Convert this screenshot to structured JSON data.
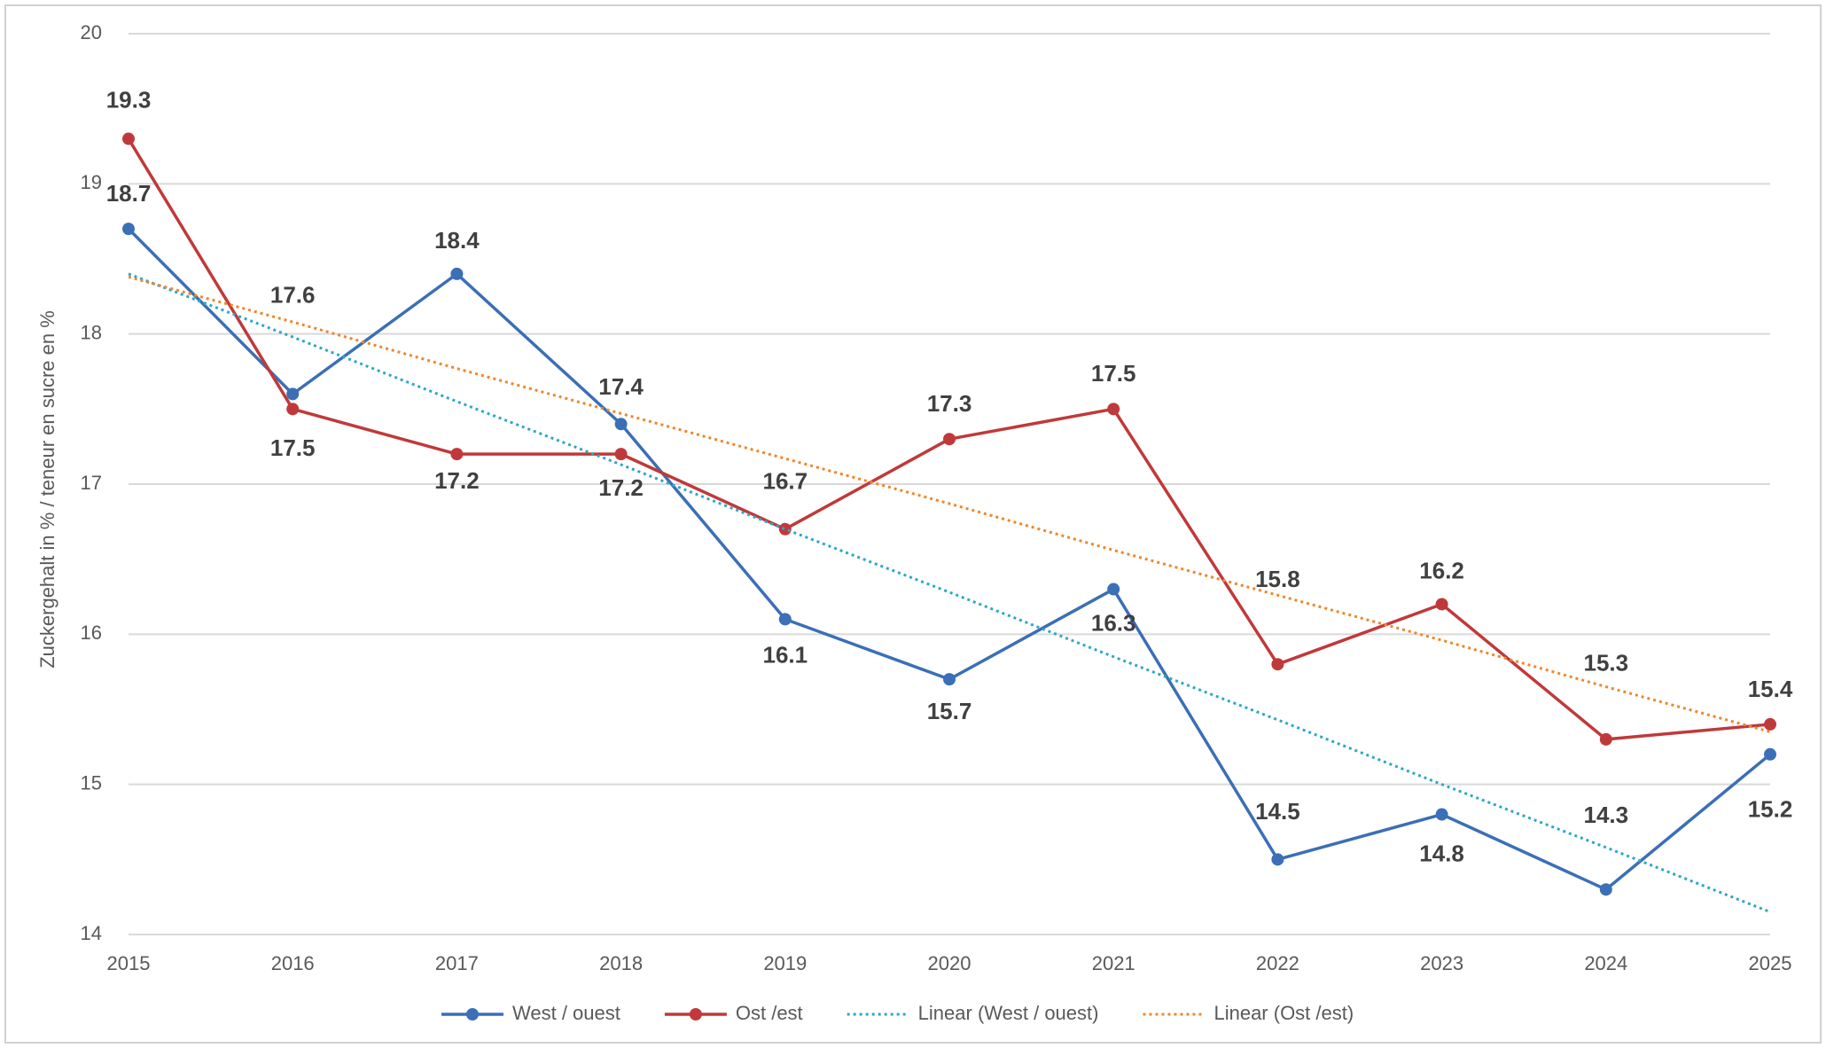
{
  "chart_data": {
    "type": "line",
    "y_label": "Zuckergehalt in % / teneur en sucre en %",
    "categories": [
      "2015",
      "2016",
      "2017",
      "2018",
      "2019",
      "2020",
      "2021",
      "2022",
      "2023",
      "2024",
      "2025"
    ],
    "series": [
      {
        "name": "West / ouest",
        "color": "#3b6fb6",
        "style": "solid",
        "markers": true,
        "data_labels": true,
        "values": [
          18.7,
          17.6,
          18.4,
          17.4,
          16.1,
          15.7,
          16.3,
          14.5,
          14.8,
          14.3,
          15.2
        ]
      },
      {
        "name": "Ost /est",
        "color": "#c0393a",
        "style": "solid",
        "markers": true,
        "data_labels": true,
        "values": [
          19.3,
          17.5,
          17.2,
          17.2,
          16.7,
          17.3,
          17.5,
          15.8,
          16.2,
          15.3,
          15.4
        ]
      },
      {
        "name": "Linear (West / ouest)",
        "color": "#2ea6c9",
        "style": "dotted",
        "markers": false,
        "data_labels": false,
        "values": [
          18.4,
          17.98,
          17.55,
          17.13,
          16.7,
          16.28,
          15.85,
          15.43,
          15.0,
          14.58,
          14.15
        ]
      },
      {
        "name": "Linear (Ost /est)",
        "color": "#f0862a",
        "style": "dotted",
        "markers": false,
        "data_labels": false,
        "values": [
          18.38,
          18.08,
          17.77,
          17.47,
          17.17,
          16.87,
          16.56,
          16.26,
          15.96,
          15.65,
          15.35
        ]
      }
    ],
    "ylim": [
      14,
      20
    ],
    "yticks": [
      14,
      15,
      16,
      17,
      18,
      19,
      20
    ],
    "grid": true,
    "legend": "bottom"
  }
}
